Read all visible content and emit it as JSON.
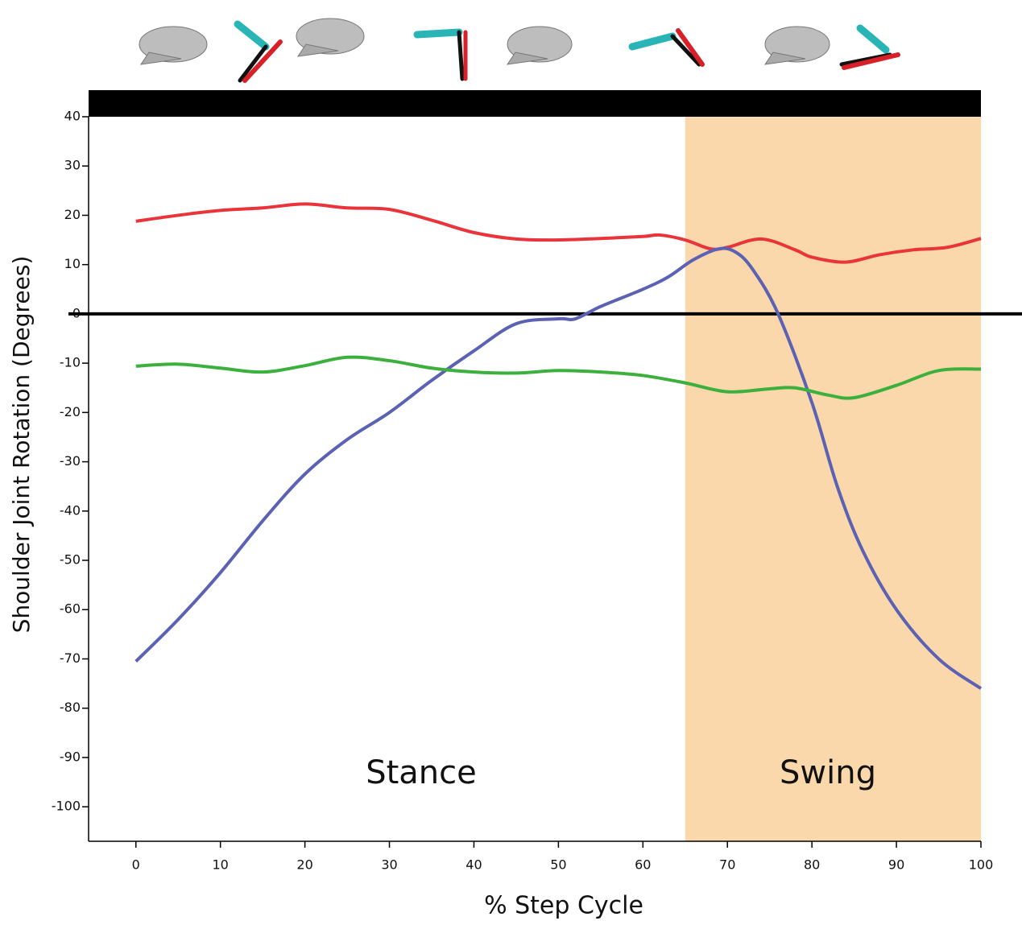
{
  "chart_data": {
    "type": "line",
    "x_label": "% Step Cycle",
    "y_label": "Shoulder Joint Rotation (Degrees)",
    "xlim": [
      -5.6,
      100
    ],
    "ylim": [
      -107,
      40
    ],
    "xticks": [
      0,
      10,
      20,
      30,
      40,
      50,
      60,
      70,
      80,
      90,
      100
    ],
    "yticks": [
      -100,
      -90,
      -80,
      -70,
      -60,
      -50,
      -40,
      -30,
      -20,
      -10,
      0,
      10,
      20,
      30,
      40
    ],
    "reference_line": 0,
    "shaded_region": {
      "x": [
        65,
        100
      ],
      "color": "#fad8ac"
    },
    "annotations": [
      "Stance",
      "Swing"
    ],
    "series": [
      {
        "color": "#e8343a",
        "x": [
          0,
          5,
          10,
          15,
          20,
          25,
          30,
          35,
          40,
          45,
          50,
          55,
          60,
          62,
          65,
          68,
          70,
          74,
          78,
          80,
          84,
          88,
          92,
          96,
          100
        ],
        "values": [
          18.8,
          20,
          21,
          21.5,
          22.3,
          21.5,
          21.2,
          19,
          16.5,
          15.2,
          15,
          15.3,
          15.7,
          16,
          15,
          13.2,
          13.5,
          15.2,
          13,
          11.5,
          10.5,
          12,
          13,
          13.5,
          15.3
        ]
      },
      {
        "color": "#5b62b4",
        "x": [
          0,
          5,
          10,
          15,
          20,
          25,
          30,
          35,
          40,
          45,
          50,
          52,
          55,
          60,
          63,
          66,
          69,
          71,
          73,
          76,
          80,
          83,
          86,
          90,
          95,
          100
        ],
        "values": [
          -70.5,
          -62,
          -52.5,
          -42,
          -32.5,
          -25.5,
          -20,
          -13.5,
          -7.5,
          -2,
          -1,
          -1,
          1.5,
          5,
          7.5,
          11,
          13.2,
          12.5,
          9,
          0,
          -18,
          -35,
          -48,
          -60,
          -70,
          -76
        ]
      },
      {
        "color": "#3bb03d",
        "x": [
          0,
          5,
          10,
          15,
          20,
          25,
          30,
          35,
          40,
          45,
          50,
          55,
          60,
          65,
          70,
          75,
          78,
          82,
          85,
          90,
          95,
          100
        ],
        "values": [
          -10.6,
          -10.2,
          -11,
          -11.8,
          -10.5,
          -8.8,
          -9.5,
          -11,
          -11.8,
          -12,
          -11.5,
          -11.8,
          -12.5,
          -14,
          -15.8,
          -15.2,
          -15,
          -16.5,
          -17,
          -14.5,
          -11.5,
          -11.2
        ]
      }
    ]
  }
}
